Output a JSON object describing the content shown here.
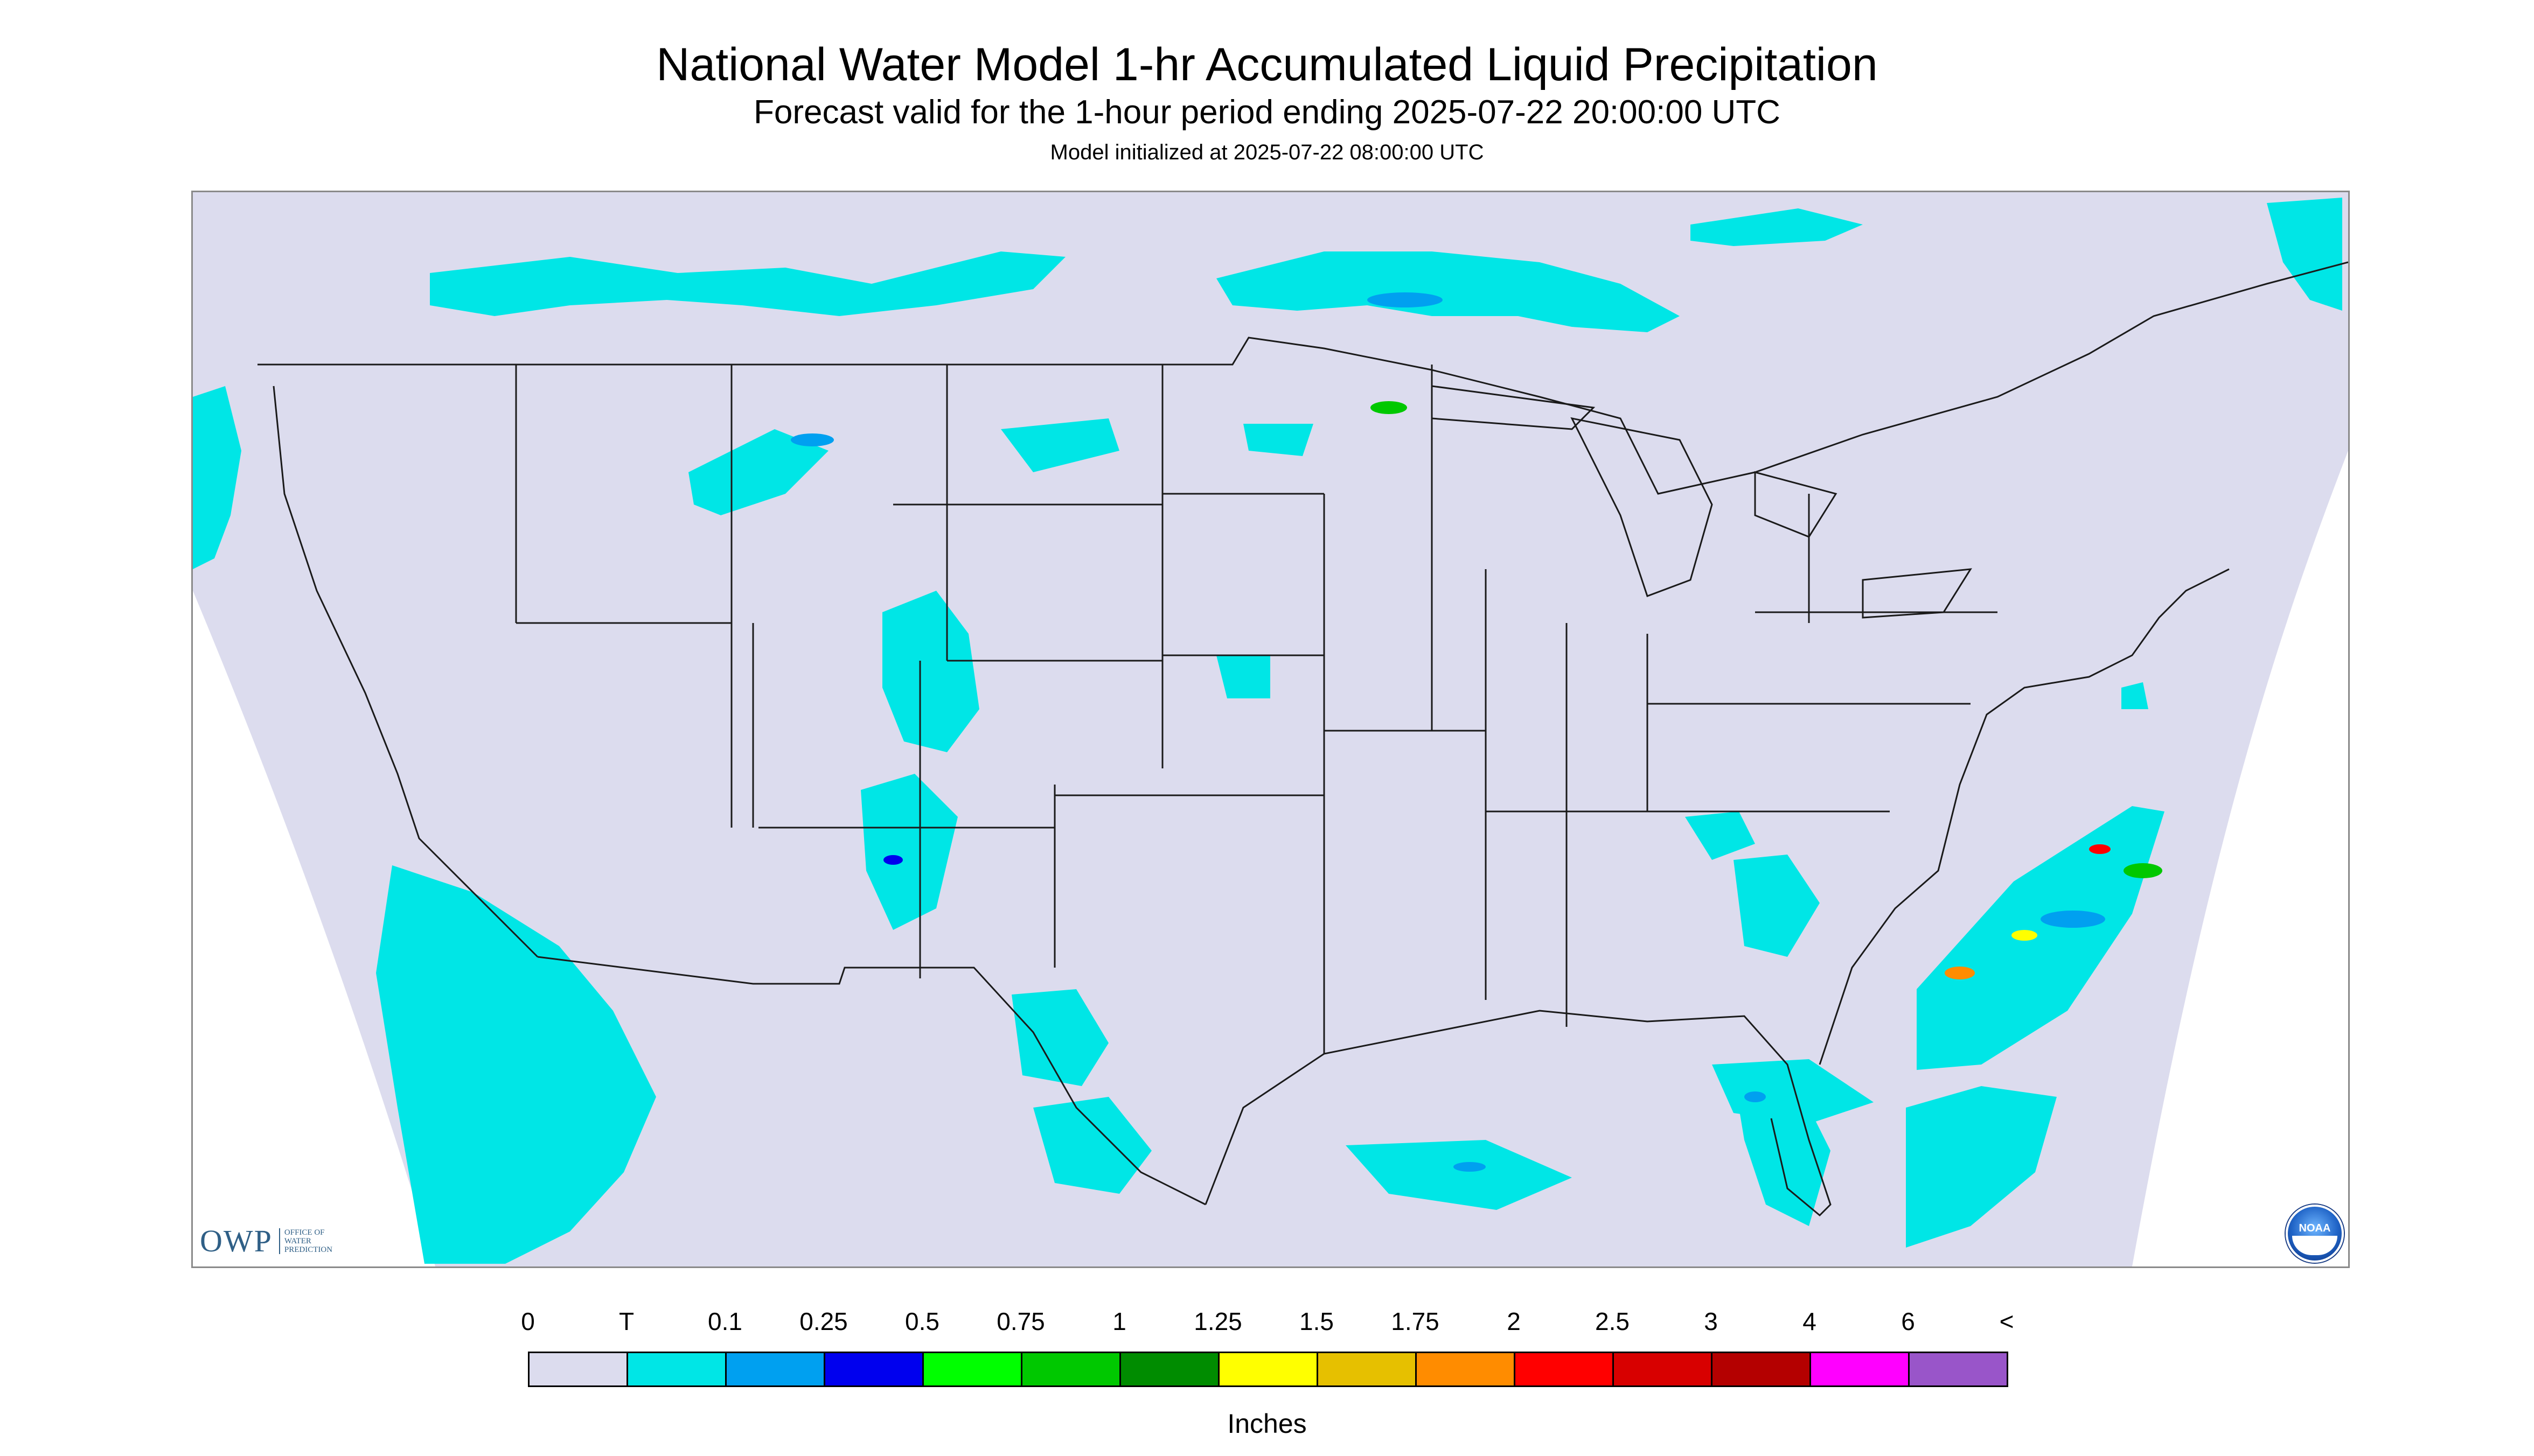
{
  "header": {
    "title": "National Water Model 1-hr Accumulated Liquid Precipitation",
    "subtitle": "Forecast valid for the 1-hour period ending 2025-07-22 20:00:00 UTC",
    "init": "Model initialized at 2025-07-22 08:00:00 UTC"
  },
  "map": {
    "background_color": "#dcdcee",
    "outside_color": "#ffffff",
    "boundary_color": "#1a1a1a"
  },
  "logos": {
    "owp_big": "OWP",
    "owp_small": "OFFICE OF WATER PREDICTION",
    "noaa_text": "NOAA",
    "owp_icon": "owp-logo",
    "noaa_icon": "noaa-logo"
  },
  "legend": {
    "labels": [
      "0",
      "T",
      "0.1",
      "0.25",
      "0.5",
      "0.75",
      "1",
      "1.25",
      "1.5",
      "1.75",
      "2",
      "2.5",
      "3",
      "4",
      "6",
      "<"
    ],
    "colors": [
      "#dcdcee",
      "#00e6e6",
      "#00a0f0",
      "#0000ee",
      "#00ff00",
      "#00c800",
      "#008c00",
      "#ffff00",
      "#e6c000",
      "#ff8c00",
      "#ff0000",
      "#d80000",
      "#b40000",
      "#ff00ff",
      "#9955c9"
    ],
    "units": "Inches"
  }
}
